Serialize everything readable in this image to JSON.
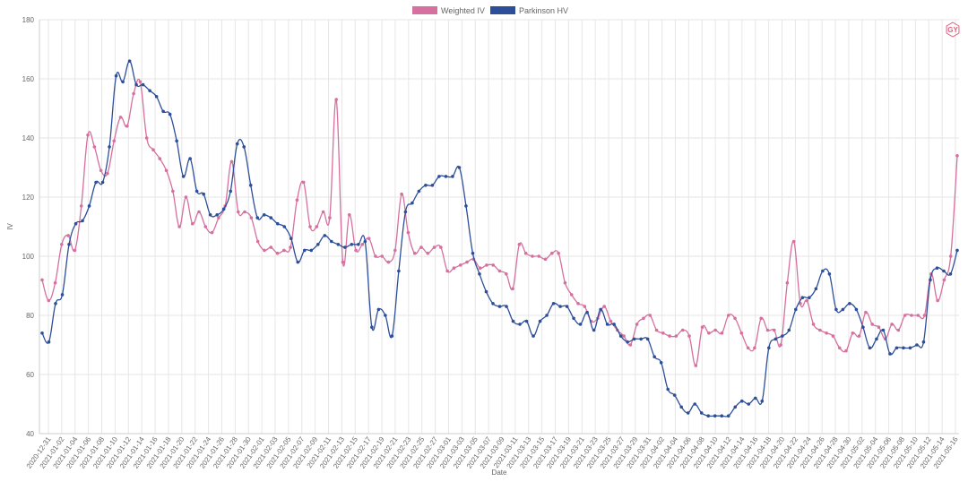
{
  "colors": {
    "weighted_iv": "#d6709f",
    "parkinson_hv": "#2d4f9a",
    "grid": "#e6e6e6",
    "axis": "#cccccc",
    "logo": "#e0607e"
  },
  "logo": {
    "text": "GY",
    "icon": "hexagon-logo-icon"
  },
  "chart_data": {
    "type": "line",
    "xlabel": "Date",
    "ylabel": "IV",
    "ylim": [
      40,
      180
    ],
    "yticks": [
      "40",
      "60",
      "80",
      "100",
      "120",
      "140",
      "160",
      "180"
    ],
    "legend": {
      "placement": "top-center",
      "entries": [
        "Weighted IV",
        "Parkinson HV"
      ]
    },
    "grid": true,
    "x_tick_labels": [
      "2020-12-31",
      "2021-01-02",
      "2021-01-04",
      "2021-01-06",
      "2021-01-08",
      "2021-01-10",
      "2021-01-12",
      "2021-01-14",
      "2021-01-16",
      "2021-01-18",
      "2021-01-20",
      "2021-01-22",
      "2021-01-24",
      "2021-01-26",
      "2021-01-28",
      "2021-01-30",
      "2021-02-01",
      "2021-02-03",
      "2021-02-05",
      "2021-02-07",
      "2021-02-09",
      "2021-02-11",
      "2021-02-13",
      "2021-02-15",
      "2021-02-17",
      "2021-02-19",
      "2021-02-21",
      "2021-02-23",
      "2021-02-25",
      "2021-02-27",
      "2021-03-01",
      "2021-03-03",
      "2021-03-05",
      "2021-03-07",
      "2021-03-09",
      "2021-03-11",
      "2021-03-13",
      "2021-03-15",
      "2021-03-17",
      "2021-03-19",
      "2021-03-21",
      "2021-03-23",
      "2021-03-25",
      "2021-03-27",
      "2021-03-29",
      "2021-03-31",
      "2021-04-02",
      "2021-04-04",
      "2021-04-06",
      "2021-04-08",
      "2021-04-10",
      "2021-04-12",
      "2021-04-14",
      "2021-04-16",
      "2021-04-18",
      "2021-04-20",
      "2021-04-22",
      "2021-04-24",
      "2021-04-26",
      "2021-04-28",
      "2021-04-30",
      "2021-05-02",
      "2021-05-04",
      "2021-05-06",
      "2021-05-08",
      "2021-05-10",
      "2021-05-12",
      "2021-05-14",
      "2021-05-16"
    ],
    "series": [
      {
        "name": "Weighted IV",
        "values": [
          92,
          85,
          91,
          104,
          107,
          102,
          117,
          141,
          137,
          129,
          128,
          139,
          147,
          144,
          155,
          159,
          140,
          136,
          133,
          129,
          122,
          110,
          120,
          111,
          115,
          110,
          108,
          113,
          117,
          132,
          115,
          115,
          113,
          105,
          102,
          103,
          101,
          102,
          103,
          119,
          125,
          110,
          110,
          115,
          113,
          153,
          98,
          114,
          102,
          104,
          106,
          100,
          100,
          98,
          102,
          121,
          108,
          101,
          103,
          101,
          103,
          103,
          95,
          96,
          97,
          98,
          99,
          96,
          97,
          97,
          95,
          94,
          89,
          104,
          101,
          100,
          100,
          99,
          101,
          101,
          91,
          87,
          84,
          83,
          78,
          79,
          83,
          78,
          75,
          73,
          70,
          77,
          79,
          80,
          75,
          74,
          73,
          73,
          75,
          73,
          63,
          76,
          74,
          75,
          74,
          80,
          79,
          74,
          69,
          69,
          79,
          75,
          75,
          70,
          91,
          105,
          84,
          85,
          77,
          75,
          74,
          73,
          69,
          68,
          74,
          73,
          81,
          77,
          76,
          72,
          77,
          75,
          80,
          80,
          80,
          80,
          94,
          85,
          92,
          100,
          134
        ]
      },
      {
        "name": "Parkinson HV",
        "values": [
          74,
          71,
          84,
          87,
          104,
          111,
          112,
          117,
          125,
          125,
          137,
          161,
          159,
          166,
          158,
          158,
          156,
          154,
          149,
          148,
          139,
          127,
          133,
          122,
          121,
          114,
          114,
          116,
          122,
          138,
          137,
          124,
          113,
          114,
          113,
          111,
          110,
          106,
          98,
          102,
          102,
          104,
          107,
          105,
          104,
          103,
          104,
          104,
          105,
          76,
          82,
          80,
          73,
          95,
          115,
          118,
          122,
          124,
          124,
          127,
          127,
          127,
          130,
          117,
          101,
          94,
          88,
          84,
          83,
          83,
          78,
          77,
          78,
          73,
          78,
          80,
          84,
          83,
          83,
          79,
          77,
          81,
          75,
          82,
          77,
          77,
          73,
          71,
          72,
          72,
          72,
          66,
          64,
          55,
          53,
          49,
          47,
          50,
          47,
          46,
          46,
          46,
          46,
          49,
          51,
          50,
          52,
          51,
          69,
          72,
          73,
          75,
          82,
          86,
          86,
          89,
          95,
          94,
          82,
          82,
          84,
          82,
          76,
          69,
          72,
          75,
          67,
          69,
          69,
          69,
          70,
          71,
          92,
          96,
          95,
          94,
          102
        ]
      }
    ]
  }
}
